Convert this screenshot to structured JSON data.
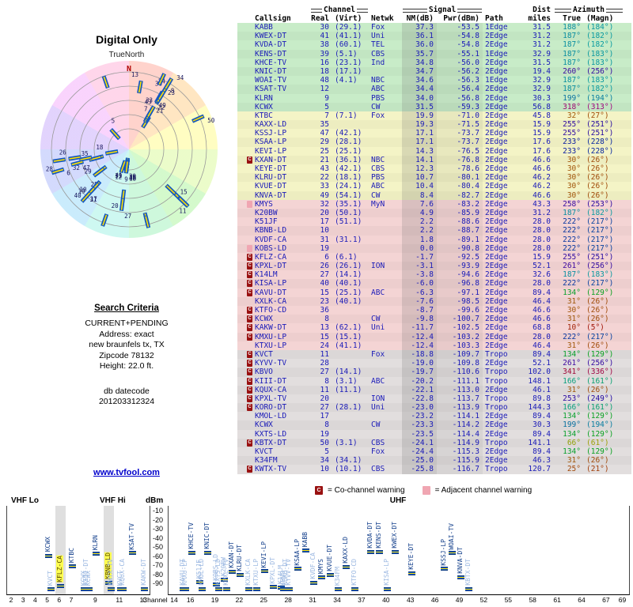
{
  "left": {
    "title": "Digital Only",
    "true_north": "TrueNorth",
    "north": "N",
    "criteria": {
      "heading": "Search Criteria",
      "lines": [
        "CURRENT+PENDING",
        "Address: exact",
        "new braunfels tx, TX",
        "Zipcode 78132",
        "Height: 22.0 ft."
      ],
      "datecode_label": "db datecode",
      "datecode": "201203312324"
    },
    "link": "www.tvfool.com"
  },
  "table": {
    "groups": {
      "channel": "Channel",
      "signal": "Signal",
      "dist": "Dist",
      "azimuth": "Azimuth"
    },
    "h": {
      "callsign": "Callsign",
      "real": "Real",
      "virt": "(Virt)",
      "netwk": "Netwk",
      "nm": "NM(dB)",
      "pwr": "Pwr(dBm)",
      "path": "Path",
      "miles": "miles",
      "true": "True",
      "magn": "(Magn)"
    },
    "rows": [
      {
        "cs": "KABB",
        "re": "30",
        "vi": "(29.1)",
        "nw": "Fox",
        "nm": "37.3",
        "pw": "-53.5",
        "pa": "1Edge",
        "mi": "31.5",
        "tr": "188°",
        "mg": "(184°)"
      },
      {
        "cs": "KWEX-DT",
        "re": "41",
        "vi": "(41.1)",
        "nw": "Uni",
        "nm": "36.1",
        "pw": "-54.8",
        "pa": "2Edge",
        "mi": "31.2",
        "tr": "187°",
        "mg": "(182°)"
      },
      {
        "cs": "KVDA-DT",
        "re": "38",
        "vi": "(60.1)",
        "nw": "TEL",
        "nm": "36.0",
        "pw": "-54.8",
        "pa": "2Edge",
        "mi": "31.2",
        "tr": "187°",
        "mg": "(182°)"
      },
      {
        "cs": "KENS-DT",
        "re": "39",
        "vi": "(5.1)",
        "nw": "CBS",
        "nm": "35.7",
        "pw": "-55.1",
        "pa": "1Edge",
        "mi": "32.9",
        "tr": "187°",
        "mg": "(183°)"
      },
      {
        "cs": "KHCE-TV",
        "re": "16",
        "vi": "(23.1)",
        "nw": "Ind",
        "nm": "34.8",
        "pw": "-56.0",
        "pa": "2Edge",
        "mi": "31.5",
        "tr": "187°",
        "mg": "(183°)"
      },
      {
        "cs": "KNIC-DT",
        "re": "18",
        "vi": "(17.1)",
        "nw": "",
        "nm": "34.7",
        "pw": "-56.2",
        "pa": "2Edge",
        "mi": "19.4",
        "tr": "260°",
        "mg": "(256°)"
      },
      {
        "cs": "WOAI-TV",
        "re": "48",
        "vi": "(4.1)",
        "nw": "NBC",
        "nm": "34.6",
        "pw": "-56.3",
        "pa": "1Edge",
        "mi": "32.9",
        "tr": "187°",
        "mg": "(183°)"
      },
      {
        "cs": "KSAT-TV",
        "re": "12",
        "vi": "",
        "nw": "ABC",
        "nm": "34.4",
        "pw": "-56.4",
        "pa": "2Edge",
        "mi": "32.9",
        "tr": "187°",
        "mg": "(182°)"
      },
      {
        "cs": "KLRN",
        "re": "9",
        "vi": "",
        "nw": "PBS",
        "nm": "34.0",
        "pw": "-56.8",
        "pa": "2Edge",
        "mi": "30.3",
        "tr": "199°",
        "mg": "(194°)"
      },
      {
        "cs": "KCWX",
        "re": "5",
        "vi": "",
        "nw": "CW",
        "nm": "31.5",
        "pw": "-59.3",
        "pa": "2Edge",
        "mi": "56.8",
        "tr": "318°",
        "mg": "(313°)"
      },
      {
        "cs": "KTBC",
        "re": "7",
        "vi": "(7.1)",
        "nw": "Fox",
        "nm": "19.9",
        "pw": "-71.0",
        "pa": "2Edge",
        "mi": "45.8",
        "tr": "32°",
        "mg": "(27°)"
      },
      {
        "cs": "KAXX-LD",
        "re": "35",
        "vi": "",
        "nw": "",
        "nm": "19.3",
        "pw": "-71.5",
        "pa": "2Edge",
        "mi": "15.9",
        "tr": "255°",
        "mg": "(251°)"
      },
      {
        "cs": "KSSJ-LP",
        "re": "47",
        "vi": "(42.1)",
        "nw": "",
        "nm": "17.1",
        "pw": "-73.7",
        "pa": "2Edge",
        "mi": "15.9",
        "tr": "255°",
        "mg": "(251°)"
      },
      {
        "cs": "KSAA-LP",
        "re": "29",
        "vi": "(28.1)",
        "nw": "",
        "nm": "17.1",
        "pw": "-73.7",
        "pa": "2Edge",
        "mi": "17.6",
        "tr": "233°",
        "mg": "(228°)"
      },
      {
        "cs": "KEVI-LP",
        "re": "25",
        "vi": "(25.1)",
        "nw": "",
        "nm": "14.3",
        "pw": "-76.5",
        "pa": "2Edge",
        "mi": "17.6",
        "tr": "233°",
        "mg": "(228°)"
      },
      {
        "w": "C",
        "cs": "KXAN-DT",
        "re": "21",
        "vi": "(36.1)",
        "nw": "NBC",
        "nm": "14.1",
        "pw": "-76.8",
        "pa": "2Edge",
        "mi": "46.6",
        "tr": "30°",
        "mg": "(26°)"
      },
      {
        "cs": "KEYE-DT",
        "re": "43",
        "vi": "(42.1)",
        "nw": "CBS",
        "nm": "12.3",
        "pw": "-78.6",
        "pa": "2Edge",
        "mi": "46.6",
        "tr": "30°",
        "mg": "(26°)"
      },
      {
        "cs": "KLRU-DT",
        "re": "22",
        "vi": "(18.1)",
        "nw": "PBS",
        "nm": "10.7",
        "pw": "-80.1",
        "pa": "2Edge",
        "mi": "46.2",
        "tr": "30°",
        "mg": "(26°)"
      },
      {
        "cs": "KVUE-DT",
        "re": "33",
        "vi": "(24.1)",
        "nw": "ABC",
        "nm": "10.4",
        "pw": "-80.4",
        "pa": "2Edge",
        "mi": "46.2",
        "tr": "30°",
        "mg": "(26°)"
      },
      {
        "cs": "KNVA-DT",
        "re": "49",
        "vi": "(54.1)",
        "nw": "CW",
        "nm": "8.4",
        "pw": "-82.7",
        "pa": "2Edge",
        "mi": "46.6",
        "tr": "30°",
        "mg": "(26°)"
      },
      {
        "w": "A",
        "cs": "KMYS",
        "re": "32",
        "vi": "(35.1)",
        "nw": "MyN",
        "nm": "7.6",
        "pw": "-83.2",
        "pa": "2Edge",
        "mi": "43.3",
        "tr": "258°",
        "mg": "(253°)"
      },
      {
        "cs": "K20BW",
        "re": "20",
        "vi": "(50.1)",
        "nw": "",
        "nm": "4.9",
        "pw": "-85.9",
        "pa": "2Edge",
        "mi": "31.2",
        "tr": "187°",
        "mg": "(182°)"
      },
      {
        "cs": "K51JF",
        "re": "17",
        "vi": "(51.1)",
        "nw": "",
        "nm": "2.2",
        "pw": "-88.6",
        "pa": "2Edge",
        "mi": "28.0",
        "tr": "222°",
        "mg": "(217°)"
      },
      {
        "cs": "KBNB-LD",
        "re": "10",
        "vi": "",
        "nw": "",
        "nm": "2.2",
        "pw": "-88.7",
        "pa": "2Edge",
        "mi": "28.0",
        "tr": "222°",
        "mg": "(217°)"
      },
      {
        "cs": "KVDF-CA",
        "re": "31",
        "vi": "(31.1)",
        "nw": "",
        "nm": "1.8",
        "pw": "-89.1",
        "pa": "2Edge",
        "mi": "28.0",
        "tr": "222°",
        "mg": "(217°)"
      },
      {
        "w": "A",
        "cs": "KOBS-LD",
        "re": "19",
        "vi": "",
        "nw": "",
        "nm": "0.0",
        "pw": "-90.8",
        "pa": "2Edge",
        "mi": "28.0",
        "tr": "222°",
        "mg": "(217°)"
      },
      {
        "w": "C",
        "cs": "KFLZ-CA",
        "re": "6",
        "vi": "(6.1)",
        "nw": "",
        "nm": "-1.7",
        "pw": "-92.5",
        "pa": "2Edge",
        "mi": "15.9",
        "tr": "255°",
        "mg": "(251°)"
      },
      {
        "w": "C",
        "cs": "KPXL-DT",
        "re": "26",
        "vi": "(26.1)",
        "nw": "ION",
        "nm": "-3.1",
        "pw": "-93.9",
        "pa": "2Edge",
        "mi": "52.1",
        "tr": "261°",
        "mg": "(256°)"
      },
      {
        "w": "C",
        "cs": "K14LM",
        "re": "27",
        "vi": "(14.1)",
        "nw": "",
        "nm": "-3.8",
        "pw": "-94.6",
        "pa": "2Edge",
        "mi": "32.6",
        "tr": "187°",
        "mg": "(183°)"
      },
      {
        "w": "C",
        "cs": "KISA-LP",
        "re": "40",
        "vi": "(40.1)",
        "nw": "",
        "nm": "-6.0",
        "pw": "-96.8",
        "pa": "2Edge",
        "mi": "28.0",
        "tr": "222°",
        "mg": "(217°)"
      },
      {
        "w": "C",
        "cs": "KAVU-DT",
        "re": "15",
        "vi": "(25.1)",
        "nw": "ABC",
        "nm": "-6.3",
        "pw": "-97.1",
        "pa": "2Edge",
        "mi": "89.4",
        "tr": "134°",
        "mg": "(129°)"
      },
      {
        "cs": "KXLK-CA",
        "re": "23",
        "vi": "(40.1)",
        "nw": "",
        "nm": "-7.6",
        "pw": "-98.5",
        "pa": "2Edge",
        "mi": "46.4",
        "tr": "31°",
        "mg": "(26°)"
      },
      {
        "w": "C",
        "cs": "KTFO-CD",
        "re": "36",
        "vi": "",
        "nw": "",
        "nm": "-8.7",
        "pw": "-99.6",
        "pa": "2Edge",
        "mi": "46.6",
        "tr": "30°",
        "mg": "(26°)"
      },
      {
        "w": "C",
        "cs": "KCWX",
        "re": "8",
        "vi": "",
        "nw": "CW",
        "nm": "-9.8",
        "pw": "-100.7",
        "pa": "2Edge",
        "mi": "46.6",
        "tr": "31°",
        "mg": "(26°)"
      },
      {
        "w": "C",
        "cs": "KAKW-DT",
        "re": "13",
        "vi": "(62.1)",
        "nw": "Uni",
        "nm": "-11.7",
        "pw": "-102.5",
        "pa": "2Edge",
        "mi": "68.8",
        "tr": "10°",
        "mg": "(5°)"
      },
      {
        "w": "C",
        "cs": "KMXU-LP",
        "re": "15",
        "vi": "(15.1)",
        "nw": "",
        "nm": "-12.4",
        "pw": "-103.2",
        "pa": "2Edge",
        "mi": "28.0",
        "tr": "222°",
        "mg": "(217°)"
      },
      {
        "cs": "KTXU-LP",
        "re": "24",
        "vi": "(41.1)",
        "nw": "",
        "nm": "-12.4",
        "pw": "-103.3",
        "pa": "2Edge",
        "mi": "46.4",
        "tr": "31°",
        "mg": "(26°)"
      },
      {
        "w": "C",
        "cs": "KVCT",
        "re": "11",
        "vi": "",
        "nw": "Fox",
        "nm": "-18.8",
        "pw": "-109.7",
        "pa": "Tropo",
        "mi": "89.4",
        "tr": "134°",
        "mg": "(129°)"
      },
      {
        "w": "C",
        "cs": "KYVV-TV",
        "re": "28",
        "vi": "",
        "nw": "",
        "nm": "-19.0",
        "pw": "-109.8",
        "pa": "2Edge",
        "mi": "52.1",
        "tr": "261°",
        "mg": "(256°)"
      },
      {
        "w": "C",
        "cs": "KBVO",
        "re": "27",
        "vi": "(14.1)",
        "nw": "",
        "nm": "-19.7",
        "pw": "-110.6",
        "pa": "Tropo",
        "mi": "102.0",
        "tr": "341°",
        "mg": "(336°)"
      },
      {
        "w": "C",
        "cs": "KIII-DT",
        "re": "8",
        "vi": "(3.1)",
        "nw": "ABC",
        "nm": "-20.2",
        "pw": "-111.1",
        "pa": "Tropo",
        "mi": "148.1",
        "tr": "166°",
        "mg": "(161°)"
      },
      {
        "w": "C",
        "cs": "KQUX-CA",
        "re": "11",
        "vi": "(11.1)",
        "nw": "",
        "nm": "-22.1",
        "pw": "-113.0",
        "pa": "2Edge",
        "mi": "46.1",
        "tr": "31°",
        "mg": "(26°)"
      },
      {
        "w": "C",
        "cs": "KPXL-TV",
        "re": "20",
        "vi": "",
        "nw": "ION",
        "nm": "-22.8",
        "pw": "-113.7",
        "pa": "Tropo",
        "mi": "89.8",
        "tr": "253°",
        "mg": "(249°)"
      },
      {
        "w": "C",
        "cs": "KORO-DT",
        "re": "27",
        "vi": "(28.1)",
        "nw": "Uni",
        "nm": "-23.0",
        "pw": "-113.9",
        "pa": "Tropo",
        "mi": "144.3",
        "tr": "166°",
        "mg": "(161°)"
      },
      {
        "cs": "KMOL-LD",
        "re": "17",
        "vi": "",
        "nw": "",
        "nm": "-23.2",
        "pw": "-114.1",
        "pa": "2Edge",
        "mi": "89.4",
        "tr": "134°",
        "mg": "(129°)"
      },
      {
        "cs": "KCWX",
        "re": "8",
        "vi": "",
        "nw": "CW",
        "nm": "-23.3",
        "pw": "-114.2",
        "pa": "2Edge",
        "mi": "30.3",
        "tr": "199°",
        "mg": "(194°)"
      },
      {
        "cs": "KXTS-LD",
        "re": "19",
        "vi": "",
        "nw": "",
        "nm": "-23.5",
        "pw": "-114.4",
        "pa": "2Edge",
        "mi": "89.4",
        "tr": "134°",
        "mg": "(129°)"
      },
      {
        "w": "C",
        "cs": "KBTX-DT",
        "re": "50",
        "vi": "(3.1)",
        "nw": "CBS",
        "nm": "-24.1",
        "pw": "-114.9",
        "pa": "Tropo",
        "mi": "141.1",
        "tr": "66°",
        "mg": "(61°)"
      },
      {
        "cs": "KVCT",
        "re": "5",
        "vi": "",
        "nw": "Fox",
        "nm": "-24.4",
        "pw": "-115.3",
        "pa": "2Edge",
        "mi": "89.4",
        "tr": "134°",
        "mg": "(129°)"
      },
      {
        "cs": "K34FM",
        "re": "34",
        "vi": "(34.1)",
        "nw": "",
        "nm": "-25.0",
        "pw": "-115.9",
        "pa": "2Edge",
        "mi": "46.3",
        "tr": "31°",
        "mg": "(26°)"
      },
      {
        "w": "C",
        "cs": "KWTX-TV",
        "re": "10",
        "vi": "(10.1)",
        "nw": "CBS",
        "nm": "-25.8",
        "pw": "-116.7",
        "pa": "Tropo",
        "mi": "120.7",
        "tr": "25°",
        "mg": "(21°)"
      }
    ]
  },
  "legend": {
    "co_badge": "C",
    "co_text": "= Co-channel warning",
    "adj_text": "= Adjacent channel warning"
  },
  "chart": {
    "dbm_label": "dBm",
    "channel_label": "Channel",
    "vhf_lo": "VHF Lo",
    "vhf_hi": "VHF Hi",
    "uhf": "UHF",
    "dbm_ticks": [
      "-10",
      "-20",
      "-30",
      "-40",
      "-50",
      "-60",
      "-70",
      "-80",
      "-90"
    ],
    "vhf_ticks": [
      "2",
      "3",
      "4",
      "5",
      "6",
      "7",
      "9",
      "11",
      "13"
    ],
    "uhf_ticks": [
      "14",
      "16",
      "19",
      "22",
      "25",
      "28",
      "31",
      "34",
      "37",
      "40",
      "43",
      "46",
      "49",
      "52",
      "55",
      "58",
      "61",
      "64",
      "67",
      "69"
    ],
    "highlighted": [
      "KFLZ-CA",
      "KBNB-LD"
    ],
    "vhf_bands": [
      6,
      10
    ]
  }
}
